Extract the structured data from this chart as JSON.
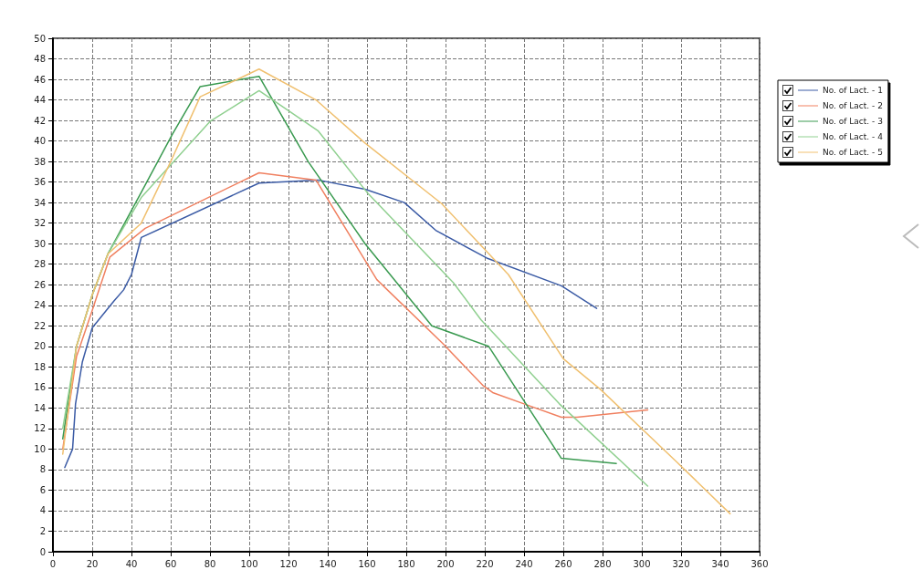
{
  "chart_data": {
    "type": "line",
    "xlim": [
      0,
      360
    ],
    "xticks": [
      0,
      20,
      40,
      60,
      80,
      100,
      120,
      140,
      160,
      180,
      200,
      220,
      240,
      260,
      280,
      300,
      320,
      340,
      360
    ],
    "ylim": [
      0,
      50
    ],
    "yticks": [
      0,
      2,
      4,
      6,
      8,
      10,
      12,
      14,
      16,
      18,
      20,
      22,
      24,
      26,
      28,
      30,
      32,
      34,
      36,
      38,
      40,
      42,
      44,
      46,
      48,
      50
    ],
    "grid": true,
    "legend": "top right",
    "marker": "none",
    "line_style": "solid",
    "series": [
      {
        "name": "No. of Lact. - 1",
        "color": "#3b5ba5",
        "x": [
          6,
          10,
          11.5,
          15,
          20,
          31,
          36,
          40,
          45,
          105,
          135,
          159,
          179,
          195,
          221,
          259,
          277
        ],
        "values": [
          8.2,
          10,
          14.4,
          18.5,
          21.8,
          24.4,
          25.5,
          27,
          30.6,
          35.9,
          36.2,
          35.3,
          34,
          31.3,
          28.6,
          25.9,
          23.7
        ]
      },
      {
        "name": "No. of Lact. - 2",
        "color": "#f08060",
        "x": [
          5,
          12,
          20,
          29,
          47,
          105,
          134,
          165,
          199,
          219,
          224,
          240,
          259,
          267,
          303
        ],
        "values": [
          10,
          19,
          23.5,
          28.7,
          31.5,
          36.9,
          36.2,
          26.5,
          20.2,
          16.2,
          15.5,
          14.4,
          13.1,
          13.1,
          13.8
        ]
      },
      {
        "name": "No. of Lact. - 3",
        "color": "#3a9a50",
        "x": [
          5,
          12,
          20,
          28,
          45,
          61,
          75,
          105,
          130,
          159,
          193,
          222,
          259,
          287
        ],
        "values": [
          11,
          20,
          25,
          29,
          35,
          40.7,
          45.3,
          46.3,
          38,
          30,
          22,
          20,
          9.1,
          8.6
        ]
      },
      {
        "name": "No. of Lact. - 4",
        "color": "#90d090",
        "x": [
          5,
          12,
          20,
          28,
          45,
          80,
          105,
          135,
          160,
          204,
          218,
          258,
          303
        ],
        "values": [
          12,
          20,
          25,
          29,
          34.5,
          41.9,
          44.9,
          41,
          35,
          26.2,
          22.6,
          14.4,
          6.4
        ]
      },
      {
        "name": "No. of Lact. - 5",
        "color": "#f0c070",
        "x": [
          5,
          12,
          20,
          28,
          45,
          60,
          75,
          105,
          134,
          159,
          198,
          232,
          260,
          279,
          318,
          345
        ],
        "values": [
          9.5,
          20,
          25,
          29,
          32,
          38,
          44.3,
          47,
          44,
          39.8,
          33.9,
          27,
          18.8,
          15.8,
          8.7,
          3.7
        ]
      }
    ]
  }
}
